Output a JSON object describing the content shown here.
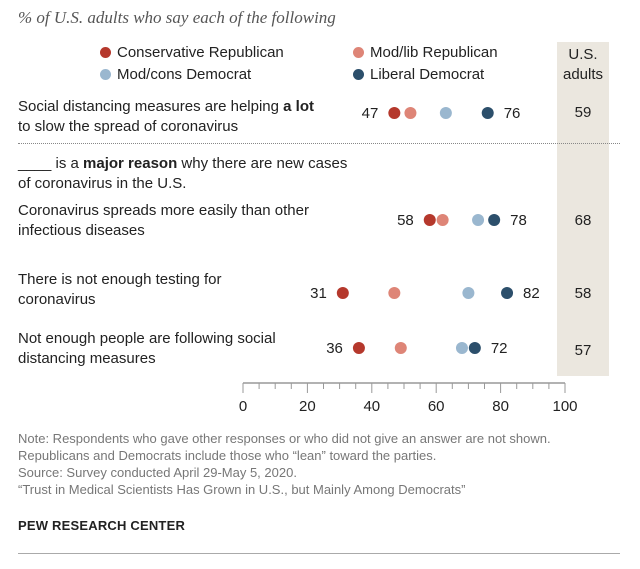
{
  "title": "% of U.S. adults who say each of the following",
  "legend": [
    {
      "label": "Conservative Republican",
      "color": "#b5382c"
    },
    {
      "label": "Mod/lib Republican",
      "color": "#de8577"
    },
    {
      "label": "Mod/cons Democrat",
      "color": "#9ab7cf"
    },
    {
      "label": "Liberal Democrat",
      "color": "#2c4f6b"
    }
  ],
  "us_header": "U.S. adults",
  "section_intro": {
    "part1": "____ is a ",
    "bold": "major reason",
    "part2": " why there are new cases of coronavirus in the U.S."
  },
  "row_labels": {
    "row1": {
      "part1": "Social distancing measures are helping ",
      "bold": "a lot",
      "part2": " to slow the spread of coronavirus"
    },
    "row2": "Coronavirus spreads more easily than other infectious diseases",
    "row3": "There is not enough testing for coronavirus",
    "row4": "Not enough people are following social distancing measures"
  },
  "chart_data": {
    "type": "scatter",
    "xlim": [
      0,
      100
    ],
    "x_ticks": [
      0,
      20,
      40,
      60,
      80,
      100
    ],
    "series_names": [
      "Conservative Republican",
      "Mod/lib Republican",
      "Mod/cons Democrat",
      "Liberal Democrat"
    ],
    "rows": [
      {
        "values": [
          47,
          52,
          63,
          76
        ],
        "low_label": "47",
        "high_label": "76",
        "us_adults": "59"
      },
      {
        "values": [
          58,
          62,
          73,
          78
        ],
        "low_label": "58",
        "high_label": "78",
        "us_adults": "68"
      },
      {
        "values": [
          31,
          47,
          70,
          82
        ],
        "low_label": "31",
        "high_label": "82",
        "us_adults": "58"
      },
      {
        "values": [
          36,
          49,
          68,
          72
        ],
        "low_label": "36",
        "high_label": "72",
        "us_adults": "57"
      }
    ]
  },
  "notes": [
    "Note: Respondents who gave other responses or who did not give an answer are not shown.",
    "Republicans and Democrats include those who “lean” toward the parties.",
    "Source: Survey conducted April 29-May 5, 2020.",
    "“Trust in Medical Scientists Has Grown in U.S., but Mainly Among Democrats”"
  ],
  "brand": "PEW RESEARCH CENTER"
}
